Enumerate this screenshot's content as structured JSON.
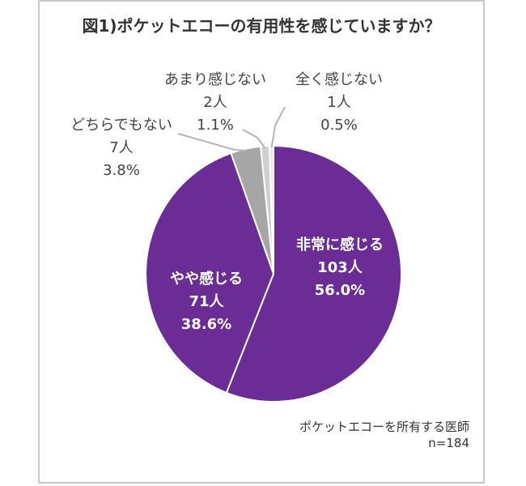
{
  "title": "図1)ポケットエコーの有用性を感じていますか？",
  "note": {
    "line1": "ポケットエコーを所有する医師",
    "line2": "n=184"
  },
  "colors": {
    "strong": "#6b2c96",
    "somewhat": "#6b2c96",
    "neutral": "#a6a6a6",
    "slight": "#cfcfcf",
    "none": "#e6e6e6",
    "leader": "#b5b5b5",
    "slice_border": "#ffffff"
  },
  "chart_data": {
    "type": "pie",
    "title": "図1)ポケットエコーの有用性を感じていますか？",
    "start": "12 o'clock",
    "direction": "clockwise",
    "slices": [
      {
        "label": "非常に感じる",
        "count": "103人",
        "value": 56.0,
        "percent": "56.0%",
        "label_position": "inside"
      },
      {
        "label": "やや感じる",
        "count": "71人",
        "value": 38.6,
        "percent": "38.6%",
        "label_position": "inside"
      },
      {
        "label": "どちらでもない",
        "count": "7人",
        "value": 3.8,
        "percent": "3.8%",
        "label_position": "outside"
      },
      {
        "label": "あまり感じない",
        "count": "2人",
        "value": 1.1,
        "percent": "1.1%",
        "label_position": "outside"
      },
      {
        "label": "全く感じない",
        "count": "1人",
        "value": 0.5,
        "percent": "0.5%",
        "label_position": "outside"
      }
    ],
    "n": 184
  }
}
